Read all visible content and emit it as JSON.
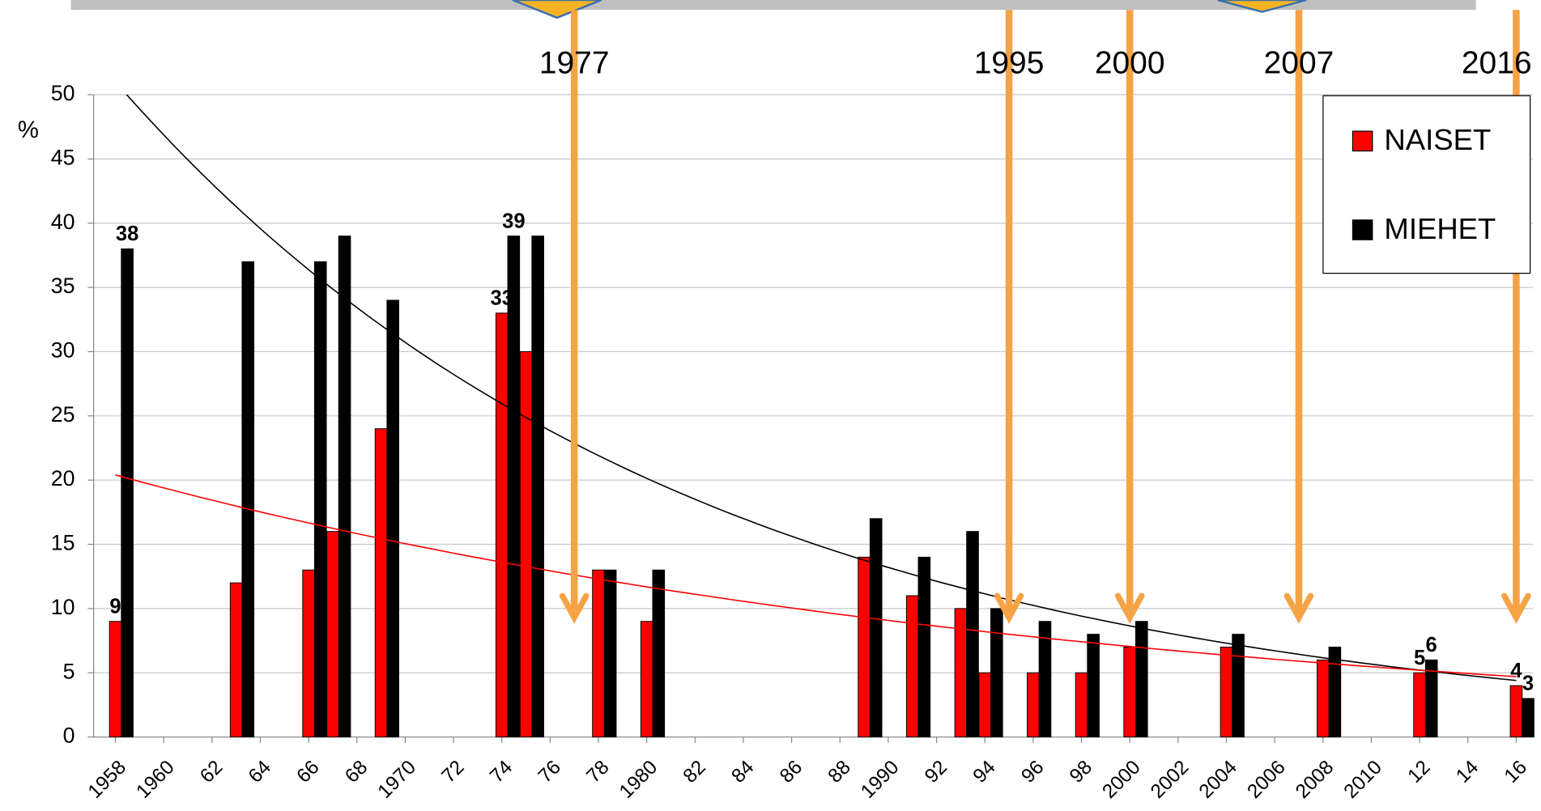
{
  "chart_data": {
    "type": "bar",
    "y_label": "%",
    "x": [
      1958,
      1963,
      1966,
      1967,
      1969,
      1974,
      1975,
      1978,
      1980,
      1989,
      1991,
      1993,
      1994,
      1996,
      1998,
      2000,
      2004,
      2008,
      2012,
      2016
    ],
    "series": [
      {
        "name": "NAISET",
        "color": "#ff0000",
        "values": [
          9,
          12,
          13,
          16,
          24,
          33,
          30,
          13,
          9,
          14,
          11,
          10,
          5,
          5,
          5,
          7,
          7,
          6,
          5,
          4
        ],
        "value_labels": [
          "9",
          null,
          null,
          null,
          null,
          "33",
          null,
          null,
          null,
          null,
          null,
          null,
          null,
          null,
          null,
          null,
          null,
          null,
          "5",
          "4"
        ]
      },
      {
        "name": "MIEHET",
        "color": "#000000",
        "values": [
          38,
          37,
          37,
          39,
          34,
          39,
          39,
          13,
          13,
          17,
          14,
          16,
          10,
          9,
          8,
          9,
          8,
          7,
          6,
          3
        ],
        "value_labels": [
          "38",
          null,
          null,
          null,
          null,
          "39",
          null,
          null,
          null,
          null,
          null,
          null,
          null,
          null,
          null,
          null,
          null,
          null,
          "6",
          "3"
        ]
      }
    ],
    "trendlines": [
      {
        "color": "#000000",
        "x": [
          1958,
          2016
        ],
        "values": [
          51,
          4.4
        ]
      },
      {
        "color": "#ff0000",
        "x": [
          1958,
          2016
        ],
        "values": [
          20.4,
          4.7
        ]
      }
    ],
    "events": [
      1977,
      1995,
      2000,
      2007,
      2016
    ],
    "xlim": [
      1957.1,
      2016.7
    ],
    "xticks": [
      {
        "value": 1958,
        "label": "1958"
      },
      {
        "value": 1960,
        "label": "1960"
      },
      {
        "value": 1962,
        "label": "62"
      },
      {
        "value": 1964,
        "label": "64"
      },
      {
        "value": 1966,
        "label": "66"
      },
      {
        "value": 1968,
        "label": "68"
      },
      {
        "value": 1970,
        "label": "1970"
      },
      {
        "value": 1972,
        "label": "72"
      },
      {
        "value": 1974,
        "label": "74"
      },
      {
        "value": 1976,
        "label": "76"
      },
      {
        "value": 1978,
        "label": "78"
      },
      {
        "value": 1980,
        "label": "1980"
      },
      {
        "value": 1982,
        "label": "82"
      },
      {
        "value": 1984,
        "label": "84"
      },
      {
        "value": 1986,
        "label": "86"
      },
      {
        "value": 1988,
        "label": "88"
      },
      {
        "value": 1990,
        "label": "1990"
      },
      {
        "value": 1992,
        "label": "92"
      },
      {
        "value": 1994,
        "label": "94"
      },
      {
        "value": 1996,
        "label": "96"
      },
      {
        "value": 1998,
        "label": "98"
      },
      {
        "value": 2000,
        "label": "2000"
      },
      {
        "value": 2002,
        "label": "2002"
      },
      {
        "value": 2004,
        "label": "2004"
      },
      {
        "value": 2006,
        "label": "2006"
      },
      {
        "value": 2008,
        "label": "2008"
      },
      {
        "value": 2010,
        "label": "2010"
      },
      {
        "value": 2012,
        "label": "12"
      },
      {
        "value": 2014,
        "label": "14"
      },
      {
        "value": 2016,
        "label": "16"
      }
    ],
    "ylim": [
      0,
      50
    ],
    "yticks": [
      0,
      5,
      10,
      15,
      20,
      25,
      30,
      35,
      40,
      45,
      50
    ],
    "grid": true,
    "legend": "top-right"
  }
}
